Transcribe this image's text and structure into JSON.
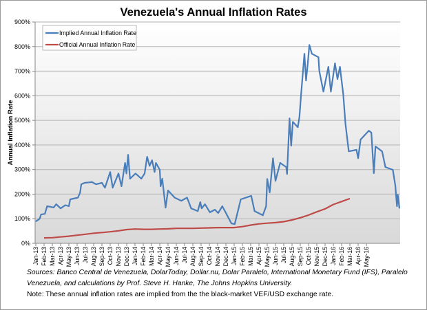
{
  "chart_data": {
    "type": "line",
    "title": "Venezuela's Annual Inflation Rates",
    "xlabel": "",
    "ylabel": "Annual Inflation Rate",
    "ylim": [
      0,
      900
    ],
    "yticks": [
      "0%",
      "100%",
      "200%",
      "300%",
      "400%",
      "500%",
      "600%",
      "700%",
      "800%",
      "900%"
    ],
    "xticks": [
      "Jan-13",
      "Feb-13",
      "Mar-13",
      "Apr-13",
      "May-13",
      "Jun-13",
      "Jul-13",
      "Aug-13",
      "Sep-13",
      "Oct-13",
      "Nov-13",
      "Dec-13",
      "Jan-14",
      "Feb-14",
      "Mar-14",
      "Apr-14",
      "May-14",
      "Jun-14",
      "Jul-14",
      "Aug-14",
      "Sep-14",
      "Oct-14",
      "Nov-14",
      "Dec-14",
      "Jan-15",
      "Feb-15",
      "Mar-15",
      "Apr-15",
      "May-15",
      "Jun-15",
      "Jul-15",
      "Aug-15",
      "Sep-15",
      "Oct-15",
      "Nov-15",
      "Dec-15",
      "Jan-16",
      "Feb-16",
      "Mar-16",
      "Apr-16",
      "May-16"
    ],
    "grid": true,
    "legend_position": "top-left",
    "series": [
      {
        "name": "Implied Annual Inflation Rate",
        "color": "#4a7ebb",
        "points": [
          [
            "2013-01-01",
            89
          ],
          [
            "2013-01-15",
            100
          ],
          [
            "2013-01-20",
            117
          ],
          [
            "2013-02-04",
            120
          ],
          [
            "2013-02-12",
            151
          ],
          [
            "2013-03-06",
            146
          ],
          [
            "2013-03-15",
            159
          ],
          [
            "2013-04-01",
            142
          ],
          [
            "2013-04-18",
            155
          ],
          [
            "2013-05-01",
            151
          ],
          [
            "2013-05-06",
            179
          ],
          [
            "2013-06-04",
            186
          ],
          [
            "2013-06-12",
            207
          ],
          [
            "2013-06-16",
            240
          ],
          [
            "2013-06-28",
            246
          ],
          [
            "2013-07-25",
            249
          ],
          [
            "2013-08-10",
            240
          ],
          [
            "2013-09-01",
            246
          ],
          [
            "2013-09-12",
            226
          ],
          [
            "2013-10-01",
            290
          ],
          [
            "2013-10-10",
            226
          ],
          [
            "2013-11-01",
            284
          ],
          [
            "2013-11-12",
            232
          ],
          [
            "2013-11-25",
            327
          ],
          [
            "2013-11-30",
            284
          ],
          [
            "2013-12-06",
            360
          ],
          [
            "2013-12-13",
            263
          ],
          [
            "2014-01-03",
            284
          ],
          [
            "2014-01-24",
            263
          ],
          [
            "2014-02-06",
            284
          ],
          [
            "2014-02-15",
            352
          ],
          [
            "2014-02-24",
            315
          ],
          [
            "2014-03-03",
            338
          ],
          [
            "2014-03-12",
            290
          ],
          [
            "2014-03-17",
            327
          ],
          [
            "2014-04-01",
            299
          ],
          [
            "2014-04-04",
            232
          ],
          [
            "2014-04-10",
            263
          ],
          [
            "2014-04-22",
            145
          ],
          [
            "2014-05-01",
            215
          ],
          [
            "2014-05-25",
            186
          ],
          [
            "2014-06-19",
            173
          ],
          [
            "2014-07-10",
            186
          ],
          [
            "2014-07-25",
            142
          ],
          [
            "2014-08-19",
            131
          ],
          [
            "2014-08-28",
            168
          ],
          [
            "2014-09-03",
            142
          ],
          [
            "2014-09-15",
            159
          ],
          [
            "2014-10-03",
            126
          ],
          [
            "2014-10-21",
            137
          ],
          [
            "2014-11-03",
            123
          ],
          [
            "2014-11-18",
            151
          ],
          [
            "2014-12-21",
            81
          ],
          [
            "2015-01-03",
            78
          ],
          [
            "2015-01-25",
            179
          ],
          [
            "2015-03-03",
            193
          ],
          [
            "2015-03-15",
            131
          ],
          [
            "2015-04-15",
            114
          ],
          [
            "2015-04-27",
            151
          ],
          [
            "2015-05-01",
            262
          ],
          [
            "2015-05-10",
            207
          ],
          [
            "2015-05-22",
            346
          ],
          [
            "2015-06-01",
            254
          ],
          [
            "2015-06-18",
            327
          ],
          [
            "2015-07-10",
            310
          ],
          [
            "2015-07-13",
            282
          ],
          [
            "2015-07-22",
            508
          ],
          [
            "2015-07-28",
            397
          ],
          [
            "2015-08-04",
            494
          ],
          [
            "2015-08-22",
            472
          ],
          [
            "2015-08-28",
            514
          ],
          [
            "2015-09-04",
            606
          ],
          [
            "2015-09-16",
            771
          ],
          [
            "2015-09-22",
            662
          ],
          [
            "2015-09-28",
            729
          ],
          [
            "2015-10-04",
            807
          ],
          [
            "2015-10-13",
            771
          ],
          [
            "2015-11-07",
            757
          ],
          [
            "2015-11-10",
            701
          ],
          [
            "2015-11-25",
            617
          ],
          [
            "2015-12-13",
            718
          ],
          [
            "2015-12-22",
            617
          ],
          [
            "2016-01-07",
            732
          ],
          [
            "2016-01-16",
            668
          ],
          [
            "2016-01-25",
            718
          ],
          [
            "2016-02-07",
            606
          ],
          [
            "2016-02-15",
            486
          ],
          [
            "2016-02-27",
            374
          ],
          [
            "2016-03-25",
            380
          ],
          [
            "2016-04-01",
            346
          ],
          [
            "2016-04-10",
            422
          ],
          [
            "2016-05-10",
            458
          ],
          [
            "2016-05-19",
            450
          ],
          [
            "2016-05-28",
            285
          ],
          [
            "2016-06-04",
            394
          ],
          [
            "2016-06-28",
            374
          ],
          [
            "2016-07-10",
            310
          ],
          [
            "2016-08-07",
            299
          ],
          [
            "2016-08-16",
            235
          ],
          [
            "2016-08-22",
            151
          ],
          [
            "2016-08-25",
            198
          ],
          [
            "2016-09-01",
            142
          ]
        ]
      },
      {
        "name": "Official Annual Inflation Rate",
        "color": "#be4b48",
        "points": [
          [
            "2013-02-01",
            22
          ],
          [
            "2013-03-01",
            23
          ],
          [
            "2013-04-01",
            26
          ],
          [
            "2013-05-01",
            29
          ],
          [
            "2013-06-01",
            33
          ],
          [
            "2013-07-01",
            37
          ],
          [
            "2013-08-01",
            41
          ],
          [
            "2013-09-01",
            44
          ],
          [
            "2013-10-01",
            47
          ],
          [
            "2013-11-01",
            51
          ],
          [
            "2013-12-01",
            56
          ],
          [
            "2014-01-01",
            58
          ],
          [
            "2014-02-01",
            57
          ],
          [
            "2014-03-01",
            57
          ],
          [
            "2014-04-01",
            58
          ],
          [
            "2014-05-01",
            59
          ],
          [
            "2014-06-01",
            61
          ],
          [
            "2014-07-01",
            61
          ],
          [
            "2014-08-01",
            61
          ],
          [
            "2014-09-01",
            62
          ],
          [
            "2014-10-01",
            63
          ],
          [
            "2014-11-01",
            64
          ],
          [
            "2014-12-01",
            64
          ],
          [
            "2015-01-01",
            64
          ],
          [
            "2015-02-01",
            68
          ],
          [
            "2015-03-01",
            74
          ],
          [
            "2015-04-01",
            79
          ],
          [
            "2015-05-01",
            82
          ],
          [
            "2015-06-01",
            84
          ],
          [
            "2015-07-01",
            88
          ],
          [
            "2015-08-01",
            95
          ],
          [
            "2015-09-01",
            104
          ],
          [
            "2015-10-01",
            115
          ],
          [
            "2015-11-01",
            128
          ],
          [
            "2015-12-01",
            140
          ],
          [
            "2016-01-01",
            158
          ],
          [
            "2016-02-01",
            170
          ],
          [
            "2016-03-01",
            182
          ]
        ]
      }
    ]
  },
  "notes": {
    "sources": "Sources: Banco Central de Venezuela, DolarToday, Dollar.nu, Dolar Paralelo, International Monetary Fund (IFS), Paralelo Venezuela, and calculations by Prof. Steve H. Hanke, The Johns Hopkins University.",
    "note": "Note: These annual inflation rates are implied from the the black-market VEF/USD exchange rate."
  }
}
